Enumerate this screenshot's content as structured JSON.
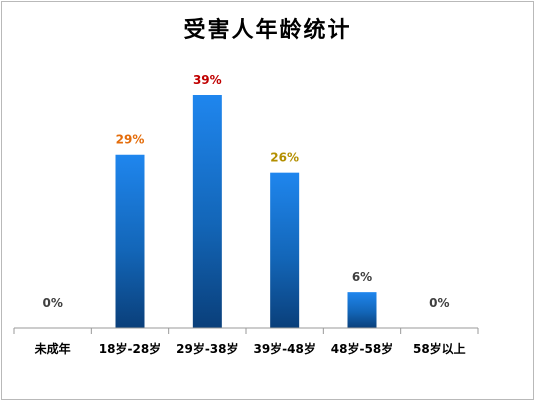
{
  "chart_data": {
    "type": "bar",
    "title": "受害人年龄统计",
    "categories": [
      "未成年",
      "18岁-28岁",
      "29岁-38岁",
      "39岁-48岁",
      "48岁-58岁",
      "58岁以上"
    ],
    "values": [
      0,
      29,
      39,
      26,
      6,
      0
    ],
    "data_labels": [
      "0%",
      "29%",
      "39%",
      "26%",
      "6%",
      "0%"
    ],
    "label_colors": [
      "#404040",
      "#e46c0a",
      "#c00000",
      "#b38f00",
      "#404040",
      "#404040"
    ],
    "unit": "%",
    "ylim": [
      0,
      39
    ],
    "grid": false,
    "legend": "none",
    "bar_color": "#1a74d1"
  }
}
